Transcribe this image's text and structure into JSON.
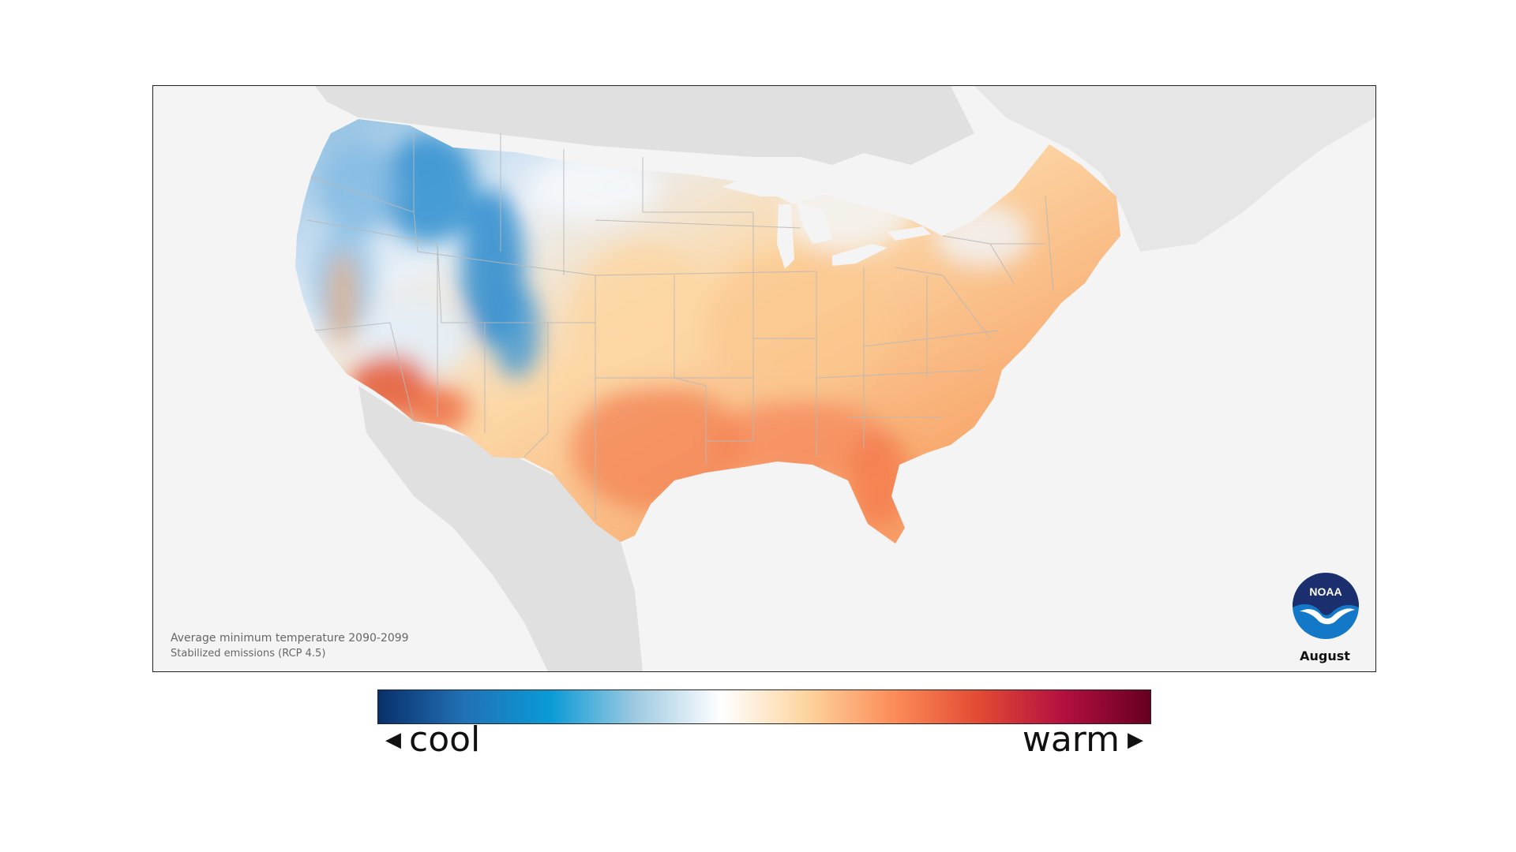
{
  "map": {
    "caption_line1": "Average minimum temperature 2090-2099",
    "caption_line2": "Stabilized emissions (RCP 4.5)",
    "month": "August",
    "logo_text": "NOAA"
  },
  "legend": {
    "cool_label": "cool",
    "warm_label": "warm",
    "colors": [
      "#08306b",
      "#2171b5",
      "#0a9ad6",
      "#9ecae1",
      "#ffffff",
      "#fdd49e",
      "#fc8d59",
      "#e34a33",
      "#b30f40",
      "#67001f"
    ]
  },
  "colors": {
    "land_background": "#e0e0e0",
    "water_background": "#f4f4f4",
    "cool_region": "#3c95d0",
    "neutral_region": "#eef3f8",
    "mild_warm_region": "#fbc78a",
    "warm_region": "#f59a62",
    "hot_region": "#e35a3a"
  }
}
